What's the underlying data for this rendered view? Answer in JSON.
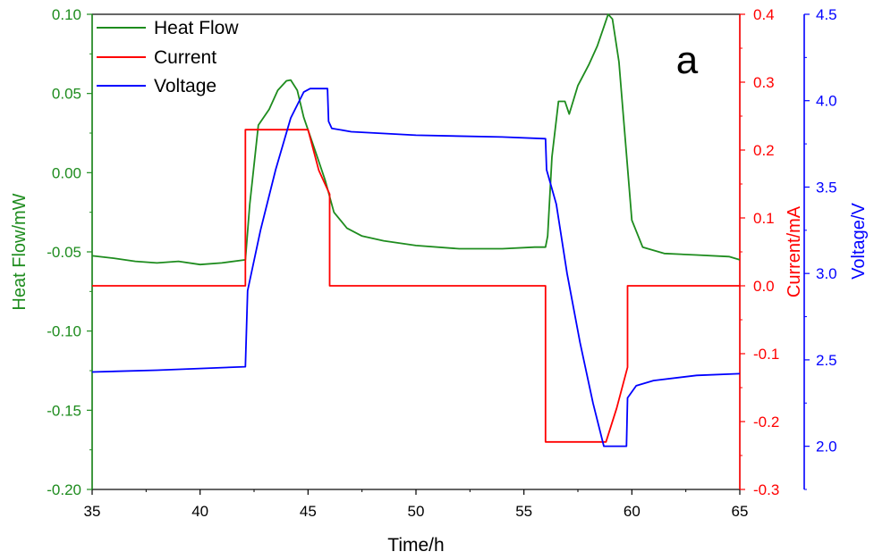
{
  "chart_data": {
    "type": "line",
    "panel_label": "a",
    "xlabel": "Time/h",
    "xlim": [
      35,
      65
    ],
    "x_ticks": [
      "35",
      "40",
      "45",
      "50",
      "55",
      "60",
      "65"
    ],
    "axes": {
      "heat": {
        "label": "Heat Flow/mW",
        "color": "#1e8c1e",
        "lim": [
          -0.2,
          0.1
        ],
        "ticks": [
          "0.10",
          "0.05",
          "0.00",
          "-0.05",
          "-0.10",
          "-0.15",
          "-0.20"
        ],
        "tick_values": [
          0.1,
          0.05,
          0.0,
          -0.05,
          -0.1,
          -0.15,
          -0.2
        ]
      },
      "current": {
        "label": "Current/mA",
        "color": "#ff0000",
        "lim": [
          -0.3,
          0.4
        ],
        "ticks": [
          "0.4",
          "0.3",
          "0.2",
          "0.1",
          "0.0",
          "-0.1",
          "-0.2",
          "-0.3"
        ],
        "tick_values": [
          0.4,
          0.3,
          0.2,
          0.1,
          0.0,
          -0.1,
          -0.2,
          -0.3
        ]
      },
      "voltage": {
        "label": "Voltage/V",
        "color": "#0000ff",
        "lim": [
          1.75,
          4.5
        ],
        "ticks": [
          "4.5",
          "4.0",
          "3.5",
          "3.0",
          "2.5",
          "2.0"
        ],
        "tick_values": [
          4.5,
          4.0,
          3.5,
          3.0,
          2.5,
          2.0
        ]
      }
    },
    "legend": {
      "placement": "top-left",
      "entries": [
        "Heat Flow",
        "Current",
        "Voltage"
      ]
    },
    "series": [
      {
        "name": "Heat Flow",
        "axis": "heat",
        "color": "#1e8c1e",
        "x": [
          35,
          36,
          37,
          38,
          39,
          40,
          41,
          42.1,
          42.3,
          42.7,
          43.2,
          43.6,
          44.0,
          44.2,
          44.5,
          44.8,
          45.3,
          45.8,
          46.2,
          46.8,
          47.5,
          48.5,
          50,
          52,
          54,
          55.5,
          56.0,
          56.1,
          56.3,
          56.6,
          56.9,
          57.1,
          57.5,
          58.0,
          58.4,
          58.7,
          58.9,
          59.1,
          59.4,
          59.7,
          60.0,
          60.5,
          61.5,
          63,
          64.5,
          65
        ],
        "y": [
          -0.0525,
          -0.054,
          -0.056,
          -0.057,
          -0.056,
          -0.058,
          -0.057,
          -0.055,
          -0.02,
          0.03,
          0.04,
          0.052,
          0.058,
          0.0585,
          0.052,
          0.035,
          0.015,
          -0.005,
          -0.025,
          -0.035,
          -0.04,
          -0.043,
          -0.046,
          -0.048,
          -0.048,
          -0.047,
          -0.047,
          -0.04,
          0.01,
          0.045,
          0.045,
          0.037,
          0.055,
          0.068,
          0.08,
          0.092,
          0.1,
          0.097,
          0.07,
          0.02,
          -0.03,
          -0.047,
          -0.051,
          -0.052,
          -0.053,
          -0.055
        ]
      },
      {
        "name": "Current",
        "axis": "current",
        "color": "#ff0000",
        "x": [
          35,
          42.1,
          42.1,
          45.0,
          45.5,
          46.0,
          46.0,
          56.0,
          56.0,
          58.8,
          59.3,
          59.8,
          59.8,
          65
        ],
        "y": [
          0.0,
          0.0,
          0.23,
          0.23,
          0.17,
          0.135,
          0.0,
          0.0,
          -0.23,
          -0.23,
          -0.18,
          -0.12,
          0.0,
          0.0
        ]
      },
      {
        "name": "Voltage",
        "axis": "voltage",
        "color": "#0000ff",
        "x": [
          35,
          38,
          42.1,
          42.2,
          42.8,
          43.5,
          44.2,
          44.8,
          45.1,
          45.9,
          45.95,
          46.1,
          47,
          50,
          54,
          56.0,
          56.05,
          56.5,
          57.0,
          57.6,
          58.2,
          58.7,
          59.0,
          59.75,
          59.8,
          60.2,
          61,
          63,
          65
        ],
        "y": [
          2.43,
          2.44,
          2.46,
          2.9,
          3.25,
          3.6,
          3.9,
          4.05,
          4.07,
          4.07,
          3.88,
          3.84,
          3.82,
          3.8,
          3.79,
          3.78,
          3.6,
          3.4,
          3.0,
          2.6,
          2.25,
          2.0,
          2.0,
          2.0,
          2.28,
          2.35,
          2.38,
          2.41,
          2.42
        ]
      }
    ]
  }
}
